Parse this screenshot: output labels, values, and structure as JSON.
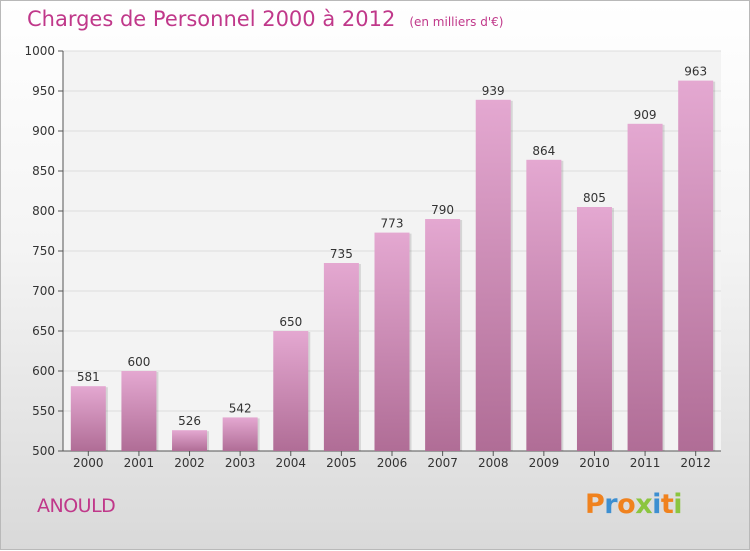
{
  "header": {
    "title": "Charges de Personnel 2000 à 2012",
    "subtitle": "(en milliers d'€)"
  },
  "footer": {
    "commune": "ANOULD",
    "logo": "Proxiti"
  },
  "colors": {
    "bar_top": "#e4a8d1",
    "bar_bottom": "#b06d96",
    "title": "#c0388a",
    "logo_letters": [
      "#f0821e",
      "#3d8fd1",
      "#f0821e",
      "#8bc53f",
      "#3d8fd1",
      "#f0821e",
      "#8bc53f"
    ]
  },
  "chart_data": {
    "type": "bar",
    "title": "Charges de Personnel 2000 à 2012",
    "subtitle": "(en milliers d'€)",
    "categories": [
      "2000",
      "2001",
      "2002",
      "2003",
      "2004",
      "2005",
      "2006",
      "2007",
      "2008",
      "2009",
      "2010",
      "2011",
      "2012"
    ],
    "values": [
      581,
      600,
      526,
      542,
      650,
      735,
      773,
      790,
      939,
      864,
      805,
      909,
      963
    ],
    "ylim": [
      500,
      1000
    ],
    "yticks": [
      500,
      550,
      600,
      650,
      700,
      750,
      800,
      850,
      900,
      950,
      1000
    ],
    "grid": true,
    "data_labels": true,
    "legend": "none"
  }
}
